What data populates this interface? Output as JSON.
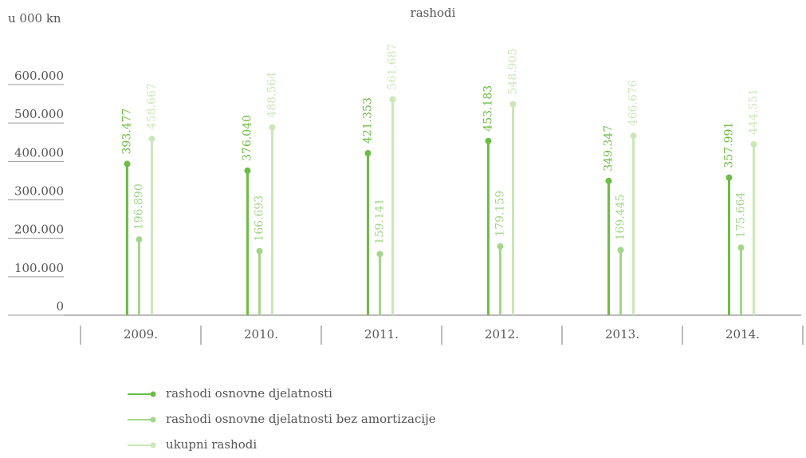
{
  "chart_data": {
    "type": "lollipop",
    "title": "rashodi",
    "y_axis_label": "u 000 kn",
    "categories": [
      "2009.",
      "2010.",
      "2011.",
      "2012.",
      "2013.",
      "2014."
    ],
    "series": [
      {
        "name": "rashodi osnovne djelatnosti",
        "color": "#6cbd45",
        "values": [
          393477,
          376040,
          421353,
          453183,
          349347,
          357991
        ],
        "value_labels": [
          "393.477",
          "376.040",
          "421.353",
          "453.183",
          "349.347",
          "357.991"
        ]
      },
      {
        "name": "rashodi osnovne djelatnosti bez amortizacije",
        "color": "#a3d68a",
        "values": [
          196890,
          166693,
          159141,
          179159,
          169445,
          175664
        ],
        "value_labels": [
          "196.890",
          "166.693",
          "159.141",
          "179.159",
          "169.445",
          "175.664"
        ]
      },
      {
        "name": "ukupni rashodi",
        "color": "#cbe7b8",
        "values": [
          458667,
          488564,
          561687,
          548905,
          466676,
          444551
        ],
        "value_labels": [
          "458.667",
          "488.564",
          "561.687",
          "548.905",
          "466.676",
          "444.551"
        ]
      }
    ],
    "ylim": [
      0,
      600000
    ],
    "yticks": [
      0,
      {
        "value": 100000,
        "label": "100.000"
      },
      {
        "value": 200000,
        "label": "200.000"
      },
      {
        "value": 300000,
        "label": "300.000"
      },
      {
        "value": 400000,
        "label": "400.000"
      },
      {
        "value": 500000,
        "label": "500.000"
      },
      {
        "value": 600000,
        "label": "600.000"
      }
    ],
    "legend": "bottom-left"
  }
}
